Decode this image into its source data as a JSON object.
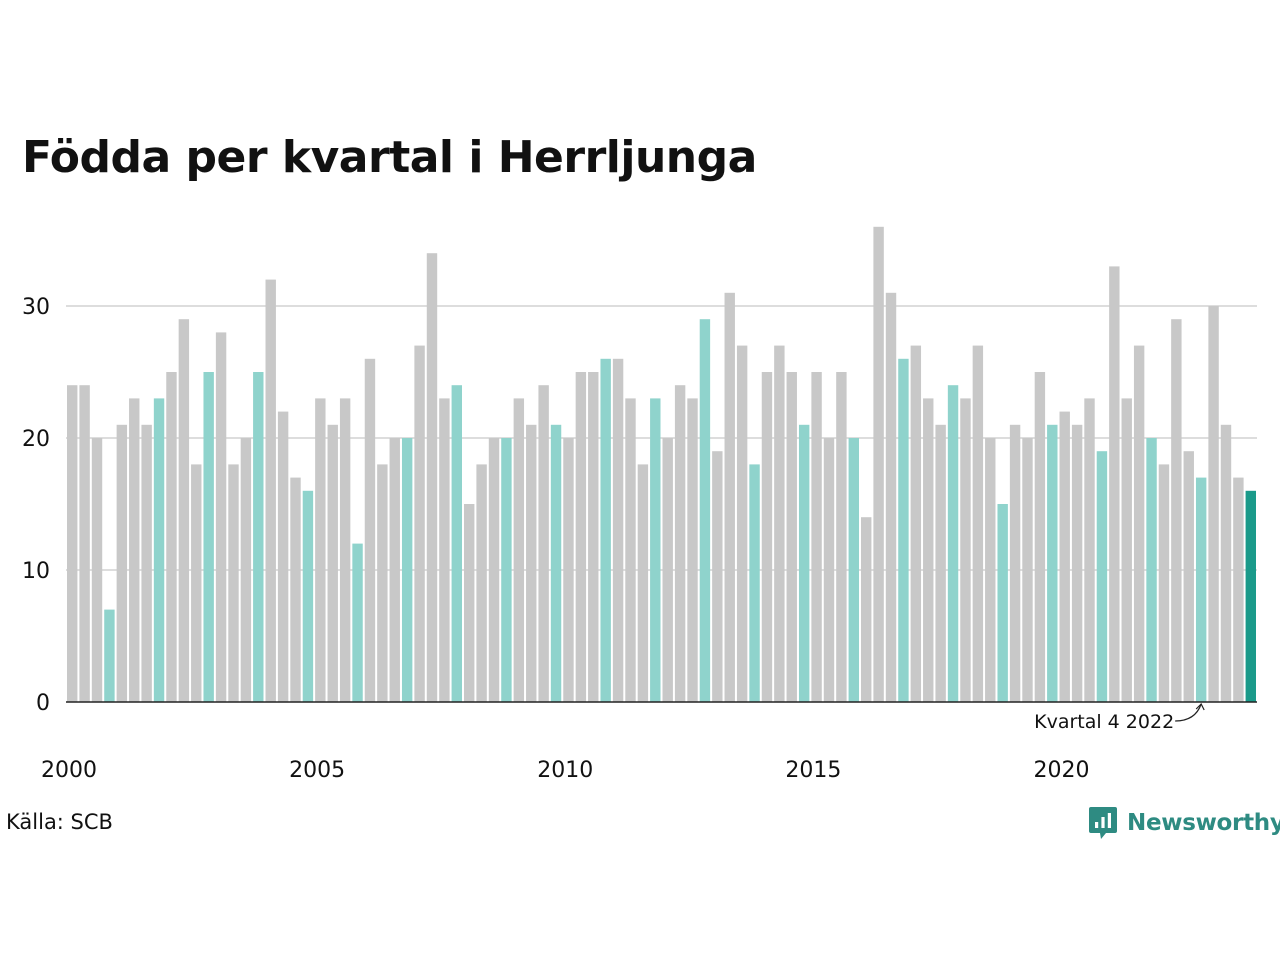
{
  "chart_data": {
    "type": "bar",
    "title": "Födda per kvartal i Herrljunga",
    "xlabel": "",
    "ylabel": "",
    "ylim": [
      0,
      36
    ],
    "yticks": [
      0,
      10,
      20,
      30
    ],
    "x_tick_labels": [
      "2000",
      "2005",
      "2010",
      "2015",
      "2020"
    ],
    "start_year": 2000,
    "grid": true,
    "legend": "none",
    "annotation": "Kvartal 4 2022",
    "annotated_category": "2022 K4",
    "highlight_quarter": 4,
    "colors": {
      "default": "#c8c8c8",
      "same_quarter": "#8fd3cc",
      "latest": "#1a9a8a",
      "grid": "#dddddd",
      "axis": "#222222"
    },
    "categories": [
      "2000 K1",
      "2000 K2",
      "2000 K3",
      "2000 K4",
      "2001 K1",
      "2001 K2",
      "2001 K3",
      "2001 K4",
      "2002 K1",
      "2002 K2",
      "2002 K3",
      "2002 K4",
      "2003 K1",
      "2003 K2",
      "2003 K3",
      "2003 K4",
      "2004 K1",
      "2004 K2",
      "2004 K3",
      "2004 K4",
      "2005 K1",
      "2005 K2",
      "2005 K3",
      "2005 K4",
      "2006 K1",
      "2006 K2",
      "2006 K3",
      "2006 K4",
      "2007 K1",
      "2007 K2",
      "2007 K3",
      "2007 K4",
      "2008 K1",
      "2008 K2",
      "2008 K3",
      "2008 K4",
      "2009 K1",
      "2009 K2",
      "2009 K3",
      "2009 K4",
      "2010 K1",
      "2010 K2",
      "2010 K3",
      "2010 K4",
      "2011 K1",
      "2011 K2",
      "2011 K3",
      "2011 K4",
      "2012 K1",
      "2012 K2",
      "2012 K3",
      "2012 K4",
      "2013 K1",
      "2013 K2",
      "2013 K3",
      "2013 K4",
      "2014 K1",
      "2014 K2",
      "2014 K3",
      "2014 K4",
      "2015 K1",
      "2015 K2",
      "2015 K3",
      "2015 K4",
      "2016 K1",
      "2016 K2",
      "2016 K3",
      "2016 K4",
      "2017 K1",
      "2017 K2",
      "2017 K3",
      "2017 K4",
      "2018 K1",
      "2018 K2",
      "2018 K3",
      "2018 K4",
      "2019 K1",
      "2019 K2",
      "2019 K3",
      "2019 K4",
      "2020 K1",
      "2020 K2",
      "2020 K3",
      "2020 K4",
      "2021 K1",
      "2021 K2",
      "2021 K3",
      "2021 K4",
      "2022 K1",
      "2022 K2",
      "2022 K3",
      "2022 K4",
      "2023 K1",
      "2023 K2",
      "2023 K3",
      "2023 K4"
    ],
    "values": [
      24,
      24,
      20,
      7,
      21,
      23,
      21,
      23,
      25,
      29,
      18,
      25,
      28,
      18,
      20,
      25,
      32,
      22,
      17,
      16,
      23,
      21,
      23,
      12,
      26,
      18,
      20,
      20,
      27,
      34,
      23,
      24,
      15,
      18,
      20,
      20,
      23,
      21,
      24,
      21,
      20,
      25,
      25,
      26,
      26,
      23,
      18,
      23,
      20,
      24,
      23,
      29,
      19,
      31,
      27,
      18,
      25,
      27,
      25,
      21,
      25,
      20,
      25,
      20,
      14,
      36,
      31,
      26,
      27,
      23,
      21,
      24,
      23,
      27,
      20,
      15,
      21,
      20,
      25,
      21,
      22,
      21,
      23,
      19,
      33,
      23,
      27,
      20,
      18,
      29,
      19,
      17,
      30,
      21,
      17,
      16
    ]
  },
  "footer": {
    "source": "Källa: SCB",
    "brand": "Newsworthy"
  }
}
